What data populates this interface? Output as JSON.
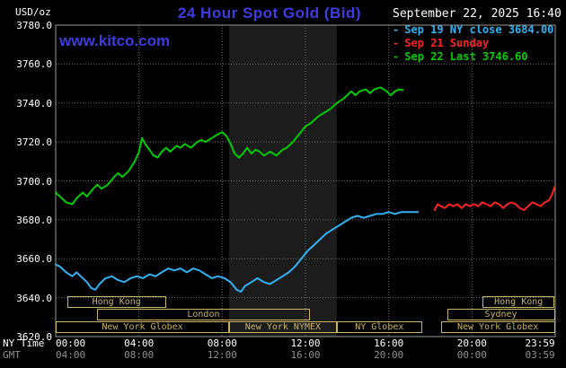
{
  "header": {
    "units": "USD/oz",
    "title": "24 Hour Spot Gold (Bid)",
    "datetime": "September 22, 2025 16:40",
    "watermark": "www.kitco.com"
  },
  "legend": [
    {
      "label": "Sep 19 NY close 3684.00",
      "color": "#33b1f2"
    },
    {
      "label": "Sep 21 Sunday",
      "color": "#ff2222"
    },
    {
      "label": "Sep 22 Last 3746.60",
      "color": "#00cc00"
    }
  ],
  "axes": {
    "ny_time_label": "NY Time",
    "gmt_label": "GMT"
  },
  "colors": {
    "background": "#000000",
    "title_blue": "#3c3ce0",
    "tick_text": "#ffffff",
    "gmt_text": "#909090",
    "session_khaki": "#c8b464",
    "grid": "#6a6a6a",
    "frame": "#999999",
    "band": "#1c1c1c"
  },
  "sessions": {
    "rows": [
      {
        "boxes": [
          {
            "label": "Hong Kong",
            "from": 0.55,
            "to": 5.3
          },
          {
            "label": "Hong Kong",
            "from": 20.5,
            "to": 23.98
          }
        ]
      },
      {
        "boxes": [
          {
            "label": "London",
            "from": 2.0,
            "to": 12.2
          },
          {
            "label": "Sydney",
            "from": 18.8,
            "to": 23.98
          }
        ]
      },
      {
        "boxes": [
          {
            "label": "New York Globex",
            "from": 0,
            "to": 8.33
          },
          {
            "label": "New York NYMEX",
            "from": 8.33,
            "to": 13.5
          },
          {
            "label": "NY Globex",
            "from": 13.5,
            "to": 17.6
          },
          {
            "label": "New York Globex",
            "from": 18.5,
            "to": 23.98
          }
        ]
      }
    ]
  },
  "chart_data": {
    "type": "line",
    "title": "24 Hour Spot Gold (Bid)",
    "xlabel": "NY Time / GMT",
    "ylabel": "USD/oz",
    "xlim": [
      0,
      24
    ],
    "ylim": [
      3620,
      3780
    ],
    "grid": true,
    "legend_position": "top-right",
    "y_tick_labels": [
      "3780.0",
      "3760.0",
      "3740.0",
      "3720.0",
      "3700.0",
      "3680.0",
      "3660.0",
      "3640.0",
      "3620.0"
    ],
    "y_tick_values": [
      3780,
      3760,
      3740,
      3720,
      3700,
      3680,
      3660,
      3640,
      3620
    ],
    "x_tick_hours": [
      0,
      4,
      8,
      12,
      16,
      20,
      23.983
    ],
    "x_tick_labels_ny": [
      "00:00",
      "04:00",
      "08:00",
      "12:00",
      "16:00",
      "20:00",
      "23:59"
    ],
    "x_tick_labels_gmt": [
      "04:00",
      "08:00",
      "12:00",
      "16:00",
      "20:00",
      "00:00",
      "03:59"
    ],
    "x_grid_hours": [
      0,
      4,
      8,
      12,
      16,
      20,
      24
    ],
    "shaded_band": {
      "from_hour": 8.33,
      "to_hour": 13.5,
      "color": "#1c1c1c"
    },
    "series": [
      {
        "id": "sep19-ny-close",
        "name": "Sep 19 NY close 3684.00",
        "color": "#33b1f2",
        "close_value": 3684.0,
        "points": [
          [
            0,
            3657
          ],
          [
            0.2,
            3656
          ],
          [
            0.5,
            3653
          ],
          [
            0.8,
            3651
          ],
          [
            1,
            3653
          ],
          [
            1.2,
            3651
          ],
          [
            1.5,
            3648
          ],
          [
            1.7,
            3645
          ],
          [
            1.9,
            3644
          ],
          [
            2.1,
            3647
          ],
          [
            2.4,
            3650
          ],
          [
            2.7,
            3651
          ],
          [
            3,
            3649
          ],
          [
            3.3,
            3648
          ],
          [
            3.6,
            3650
          ],
          [
            3.9,
            3651
          ],
          [
            4.2,
            3650
          ],
          [
            4.5,
            3652
          ],
          [
            4.8,
            3651
          ],
          [
            5.1,
            3653
          ],
          [
            5.4,
            3655
          ],
          [
            5.7,
            3654
          ],
          [
            6,
            3655
          ],
          [
            6.3,
            3653
          ],
          [
            6.6,
            3655
          ],
          [
            6.9,
            3654
          ],
          [
            7.2,
            3652
          ],
          [
            7.5,
            3650
          ],
          [
            7.8,
            3651
          ],
          [
            8.1,
            3650
          ],
          [
            8.4,
            3648
          ],
          [
            8.7,
            3644
          ],
          [
            8.9,
            3643
          ],
          [
            9.1,
            3646
          ],
          [
            9.4,
            3648
          ],
          [
            9.7,
            3650
          ],
          [
            10,
            3648
          ],
          [
            10.3,
            3647
          ],
          [
            10.6,
            3649
          ],
          [
            10.9,
            3651
          ],
          [
            11.2,
            3653
          ],
          [
            11.5,
            3656
          ],
          [
            11.8,
            3660
          ],
          [
            12.1,
            3664
          ],
          [
            12.4,
            3667
          ],
          [
            12.7,
            3670
          ],
          [
            13,
            3673
          ],
          [
            13.3,
            3675
          ],
          [
            13.6,
            3677
          ],
          [
            13.9,
            3679
          ],
          [
            14.2,
            3681
          ],
          [
            14.5,
            3682
          ],
          [
            14.8,
            3681
          ],
          [
            15.1,
            3682
          ],
          [
            15.4,
            3683
          ],
          [
            15.7,
            3683
          ],
          [
            16,
            3684
          ],
          [
            16.3,
            3683
          ],
          [
            16.6,
            3684
          ],
          [
            17,
            3684
          ],
          [
            17.4,
            3684
          ]
        ]
      },
      {
        "id": "sep21-sunday",
        "name": "Sep 21 Sunday",
        "color": "#ff2222",
        "points": [
          [
            18.2,
            3685
          ],
          [
            18.35,
            3688
          ],
          [
            18.5,
            3687
          ],
          [
            18.7,
            3686
          ],
          [
            18.9,
            3688
          ],
          [
            19.1,
            3687
          ],
          [
            19.3,
            3688
          ],
          [
            19.5,
            3686
          ],
          [
            19.7,
            3688
          ],
          [
            19.9,
            3687
          ],
          [
            20.1,
            3688
          ],
          [
            20.3,
            3687
          ],
          [
            20.5,
            3689
          ],
          [
            20.7,
            3688
          ],
          [
            20.9,
            3687
          ],
          [
            21.1,
            3689
          ],
          [
            21.3,
            3688
          ],
          [
            21.5,
            3686
          ],
          [
            21.7,
            3688
          ],
          [
            21.9,
            3689
          ],
          [
            22.1,
            3688
          ],
          [
            22.3,
            3686
          ],
          [
            22.5,
            3685
          ],
          [
            22.7,
            3687
          ],
          [
            22.9,
            3689
          ],
          [
            23.1,
            3688
          ],
          [
            23.3,
            3687
          ],
          [
            23.5,
            3689
          ],
          [
            23.7,
            3690
          ],
          [
            23.85,
            3693
          ],
          [
            23.98,
            3697
          ]
        ]
      },
      {
        "id": "sep22-last",
        "name": "Sep 22 Last 3746.60",
        "color": "#00cc00",
        "last_value": 3746.6,
        "points": [
          [
            0,
            3694
          ],
          [
            0.2,
            3692
          ],
          [
            0.5,
            3689
          ],
          [
            0.8,
            3688
          ],
          [
            1,
            3691
          ],
          [
            1.3,
            3694
          ],
          [
            1.5,
            3692
          ],
          [
            1.8,
            3696
          ],
          [
            2,
            3698
          ],
          [
            2.2,
            3696
          ],
          [
            2.5,
            3698
          ],
          [
            2.8,
            3702
          ],
          [
            3,
            3704
          ],
          [
            3.2,
            3702
          ],
          [
            3.5,
            3705
          ],
          [
            3.8,
            3710
          ],
          [
            4,
            3715
          ],
          [
            4.15,
            3722
          ],
          [
            4.3,
            3719
          ],
          [
            4.5,
            3716
          ],
          [
            4.7,
            3713
          ],
          [
            4.9,
            3712
          ],
          [
            5.1,
            3715
          ],
          [
            5.3,
            3717
          ],
          [
            5.5,
            3715
          ],
          [
            5.8,
            3718
          ],
          [
            6,
            3717
          ],
          [
            6.2,
            3719
          ],
          [
            6.5,
            3717
          ],
          [
            6.8,
            3720
          ],
          [
            7,
            3721
          ],
          [
            7.2,
            3720
          ],
          [
            7.5,
            3722
          ],
          [
            7.8,
            3724
          ],
          [
            8,
            3725
          ],
          [
            8.2,
            3723
          ],
          [
            8.4,
            3719
          ],
          [
            8.6,
            3714
          ],
          [
            8.8,
            3712
          ],
          [
            9,
            3714
          ],
          [
            9.2,
            3717
          ],
          [
            9.4,
            3714
          ],
          [
            9.6,
            3716
          ],
          [
            9.8,
            3715
          ],
          [
            10,
            3713
          ],
          [
            10.3,
            3715
          ],
          [
            10.6,
            3713
          ],
          [
            10.9,
            3716
          ],
          [
            11.1,
            3717
          ],
          [
            11.4,
            3720
          ],
          [
            11.7,
            3724
          ],
          [
            12,
            3728
          ],
          [
            12.3,
            3730
          ],
          [
            12.6,
            3733
          ],
          [
            12.9,
            3735
          ],
          [
            13.2,
            3737
          ],
          [
            13.5,
            3740
          ],
          [
            13.8,
            3742
          ],
          [
            14,
            3744
          ],
          [
            14.2,
            3746
          ],
          [
            14.4,
            3744
          ],
          [
            14.6,
            3746
          ],
          [
            14.9,
            3747
          ],
          [
            15.1,
            3745
          ],
          [
            15.3,
            3747
          ],
          [
            15.6,
            3748
          ],
          [
            15.9,
            3746
          ],
          [
            16.1,
            3744
          ],
          [
            16.3,
            3746
          ],
          [
            16.5,
            3747
          ],
          [
            16.67,
            3746.6
          ]
        ]
      }
    ]
  }
}
